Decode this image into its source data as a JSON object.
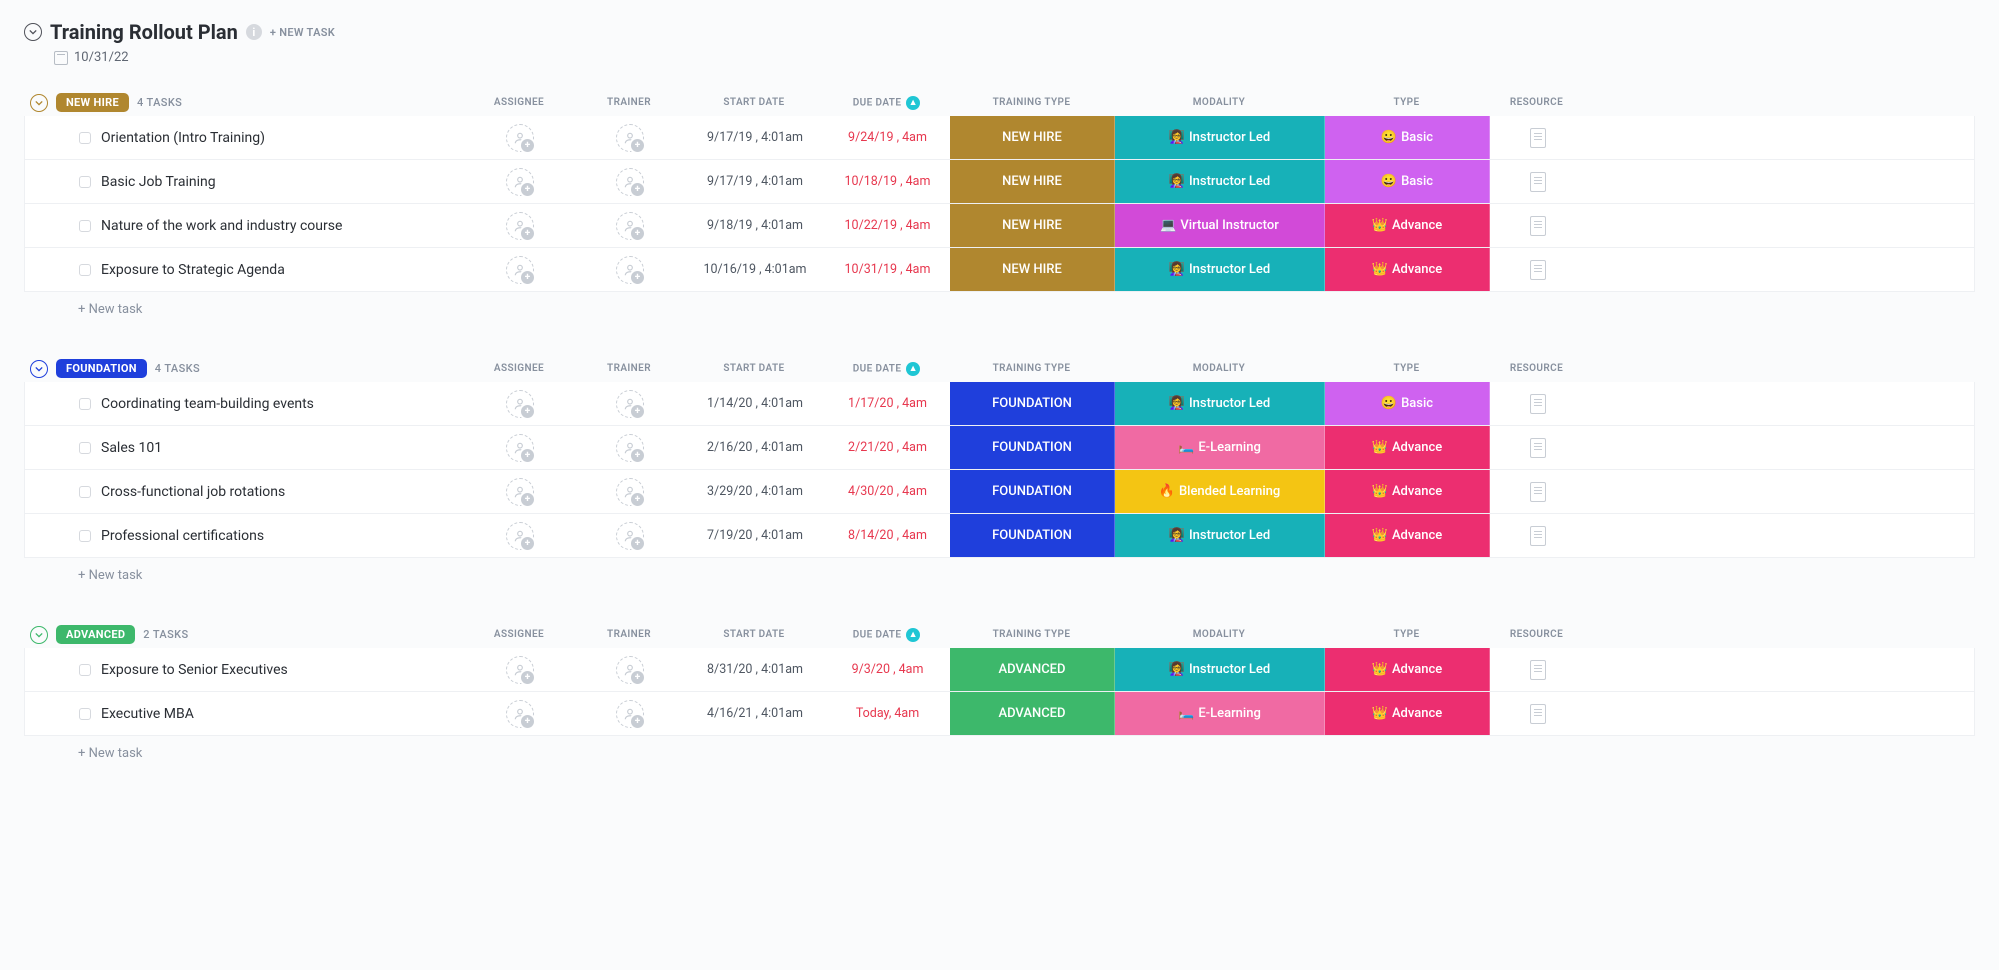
{
  "header": {
    "title": "Training Rollout Plan",
    "new_task_label": "+ NEW TASK",
    "date": "10/31/22"
  },
  "columns": {
    "assignee": "ASSIGNEE",
    "trainer": "TRAINER",
    "start_date": "START DATE",
    "due_date": "DUE DATE",
    "training_type": "TRAINING TYPE",
    "modality": "MODALITY",
    "type": "TYPE",
    "resource": "RESOURCE"
  },
  "labels": {
    "new_task": "+ New task"
  },
  "colors": {
    "training_type": {
      "NEW HIRE": "#b0872f",
      "FOUNDATION": "#1f3fdc",
      "ADVANCED": "#3db86b"
    },
    "modality": {
      "Instructor Led": "#17b1b8",
      "Virtual Instructor": "#d24ad8",
      "E-Learning": "#f06aa3",
      "Blended Learning": "#f4c513"
    },
    "type": {
      "Basic": "#cf62f0",
      "Advance": "#ec2e70"
    }
  },
  "emoji": {
    "modality": {
      "Instructor Led": "👩‍🏫",
      "Virtual Instructor": "💻",
      "E-Learning": "🛏️",
      "Blended Learning": "🔥"
    },
    "type": {
      "Basic": "😀",
      "Advance": "👑"
    }
  },
  "groups": [
    {
      "name": "NEW HIRE",
      "pill_color": "#b0872f",
      "accent": "#b0872f",
      "count_label": "4 TASKS",
      "tasks": [
        {
          "title": "Orientation (Intro Training)",
          "start": "9/17/19 , 4:01am",
          "due": "9/24/19 , 4am",
          "training_type": "NEW HIRE",
          "modality": "Instructor Led",
          "type": "Basic"
        },
        {
          "title": "Basic Job Training",
          "start": "9/17/19 , 4:01am",
          "due": "10/18/19 , 4am",
          "training_type": "NEW HIRE",
          "modality": "Instructor Led",
          "type": "Basic"
        },
        {
          "title": "Nature of the work and industry course",
          "start": "9/18/19 , 4:01am",
          "due": "10/22/19 , 4am",
          "training_type": "NEW HIRE",
          "modality": "Virtual Instructor",
          "type": "Advance"
        },
        {
          "title": "Exposure to Strategic Agenda",
          "start": "10/16/19 , 4:01am",
          "due": "10/31/19 , 4am",
          "training_type": "NEW HIRE",
          "modality": "Instructor Led",
          "type": "Advance"
        }
      ]
    },
    {
      "name": "FOUNDATION",
      "pill_color": "#1f3fdc",
      "accent": "#1f3fdc",
      "count_label": "4 TASKS",
      "tasks": [
        {
          "title": "Coordinating team-building events",
          "start": "1/14/20 , 4:01am",
          "due": "1/17/20 , 4am",
          "training_type": "FOUNDATION",
          "modality": "Instructor Led",
          "type": "Basic"
        },
        {
          "title": "Sales 101",
          "start": "2/16/20 , 4:01am",
          "due": "2/21/20 , 4am",
          "training_type": "FOUNDATION",
          "modality": "E-Learning",
          "type": "Advance"
        },
        {
          "title": "Cross-functional job rotations",
          "start": "3/29/20 , 4:01am",
          "due": "4/30/20 , 4am",
          "training_type": "FOUNDATION",
          "modality": "Blended Learning",
          "type": "Advance"
        },
        {
          "title": "Professional certifications",
          "start": "7/19/20 , 4:01am",
          "due": "8/14/20 , 4am",
          "training_type": "FOUNDATION",
          "modality": "Instructor Led",
          "type": "Advance"
        }
      ]
    },
    {
      "name": "ADVANCED",
      "pill_color": "#3db86b",
      "accent": "#3db86b",
      "count_label": "2 TASKS",
      "tasks": [
        {
          "title": "Exposure to Senior Executives",
          "start": "8/31/20 , 4:01am",
          "due": "9/3/20 , 4am",
          "training_type": "ADVANCED",
          "modality": "Instructor Led",
          "type": "Advance"
        },
        {
          "title": "Executive MBA",
          "start": "4/16/21 , 4:01am",
          "due": "Today, 4am",
          "training_type": "ADVANCED",
          "modality": "E-Learning",
          "type": "Advance"
        }
      ]
    }
  ]
}
